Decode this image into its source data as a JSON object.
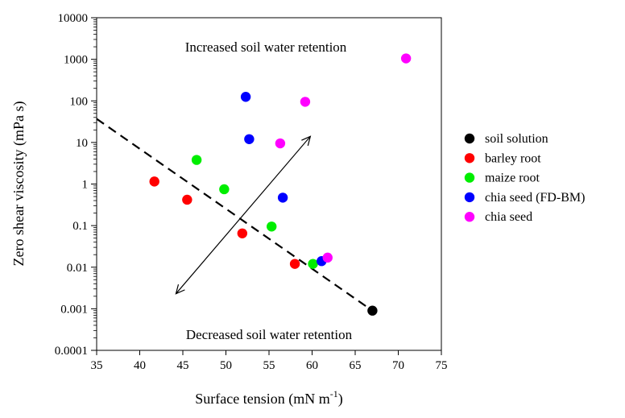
{
  "chart_data": {
    "type": "scatter",
    "xlabel": "Surface tension (mN m",
    "xlabel_sup": "-1",
    "xlabel_end": ")",
    "ylabel": "Zero shear viscosity (mPa s)",
    "xlim": [
      35,
      75
    ],
    "ylim": [
      0.0001,
      10000
    ],
    "yscale": "log",
    "x_ticks": [
      "35",
      "40",
      "45",
      "50",
      "55",
      "60",
      "65",
      "70",
      "75"
    ],
    "y_ticks": [
      "0.0001",
      "0.001",
      "0.01",
      "0.1",
      "1",
      "10",
      "100",
      "1000",
      "10000"
    ],
    "grid": false,
    "legend_position": "right",
    "series": [
      {
        "name": "soil solution",
        "color": "#000000",
        "points": [
          [
            67.0,
            0.0009
          ]
        ]
      },
      {
        "name": "barley root",
        "color": "#ff0000",
        "points": [
          [
            41.7,
            1.15
          ],
          [
            45.5,
            0.42
          ],
          [
            51.9,
            0.065
          ],
          [
            58.0,
            0.012
          ]
        ]
      },
      {
        "name": "maize root",
        "color": "#00ee00",
        "points": [
          [
            46.6,
            3.8
          ],
          [
            49.8,
            0.75
          ],
          [
            55.3,
            0.095
          ],
          [
            60.1,
            0.012
          ]
        ]
      },
      {
        "name": "chia seed (FD-BM)",
        "color": "#0000ff",
        "points": [
          [
            52.3,
            125
          ],
          [
            52.7,
            12
          ],
          [
            56.6,
            0.47
          ],
          [
            61.1,
            0.014
          ]
        ]
      },
      {
        "name": "chia seed",
        "color": "#ff00ff",
        "points": [
          [
            56.3,
            9.5
          ],
          [
            59.2,
            95
          ],
          [
            61.8,
            0.017
          ],
          [
            70.9,
            1050
          ]
        ]
      }
    ],
    "annotations": {
      "top_text": "Increased soil water retention",
      "bottom_text": "Decreased soil water retention"
    },
    "trend_line": {
      "style": "dashed",
      "from": [
        35,
        37
      ],
      "to": [
        67,
        0.0009
      ]
    },
    "double_arrow": {
      "from": [
        44.2,
        0.0023
      ],
      "to": [
        59.8,
        14
      ]
    }
  }
}
